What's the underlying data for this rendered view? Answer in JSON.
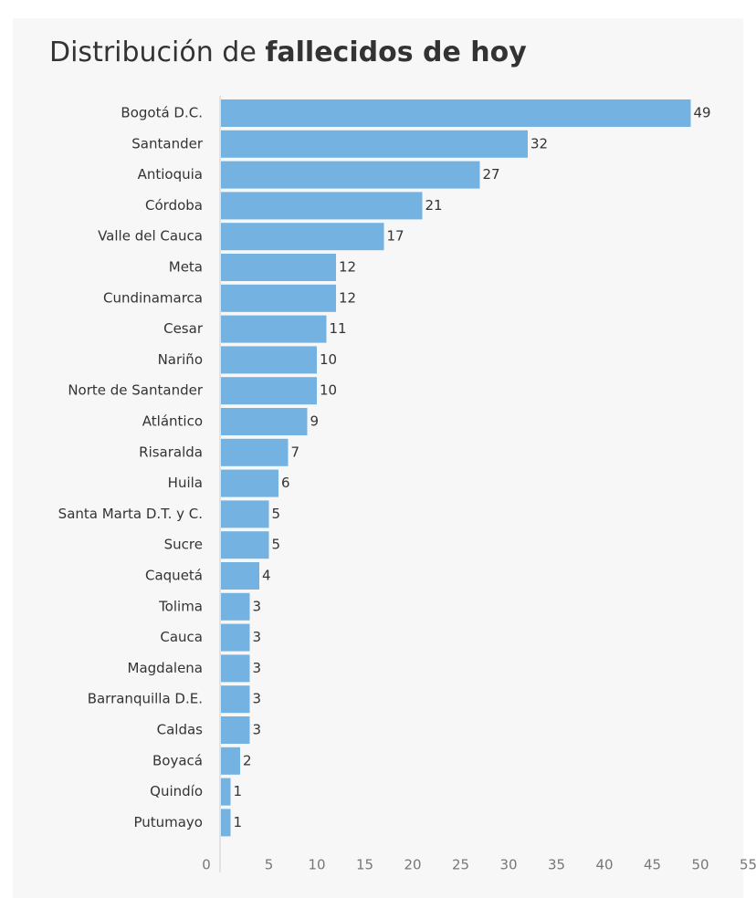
{
  "chart_data": {
    "type": "bar",
    "orientation": "horizontal",
    "title_prefix": "Distribución de ",
    "title_bold": "fallecidos de hoy",
    "categories": [
      "Bogotá D.C.",
      "Santander",
      "Antioquia",
      "Córdoba",
      "Valle del Cauca",
      "Meta",
      "Cundinamarca",
      "Cesar",
      "Nariño",
      "Norte de Santander",
      "Atlántico",
      "Risaralda",
      "Huila",
      "Santa Marta D.T. y C.",
      "Sucre",
      "Caquetá",
      "Tolima",
      "Cauca",
      "Magdalena",
      "Barranquilla D.E.",
      "Caldas",
      "Boyacá",
      "Quindío",
      "Putumayo"
    ],
    "values": [
      49,
      32,
      27,
      21,
      17,
      12,
      12,
      11,
      10,
      10,
      9,
      7,
      6,
      5,
      5,
      4,
      3,
      3,
      3,
      3,
      3,
      2,
      1,
      1
    ],
    "xlim": [
      0,
      55
    ],
    "xticks": [
      0,
      5,
      10,
      15,
      20,
      25,
      30,
      35,
      40,
      45,
      50,
      55
    ],
    "grid": false,
    "legend": "none",
    "colors": {
      "bar": "#74b3e1",
      "background": "#f7f7f7",
      "axis": "#cccccc"
    }
  }
}
